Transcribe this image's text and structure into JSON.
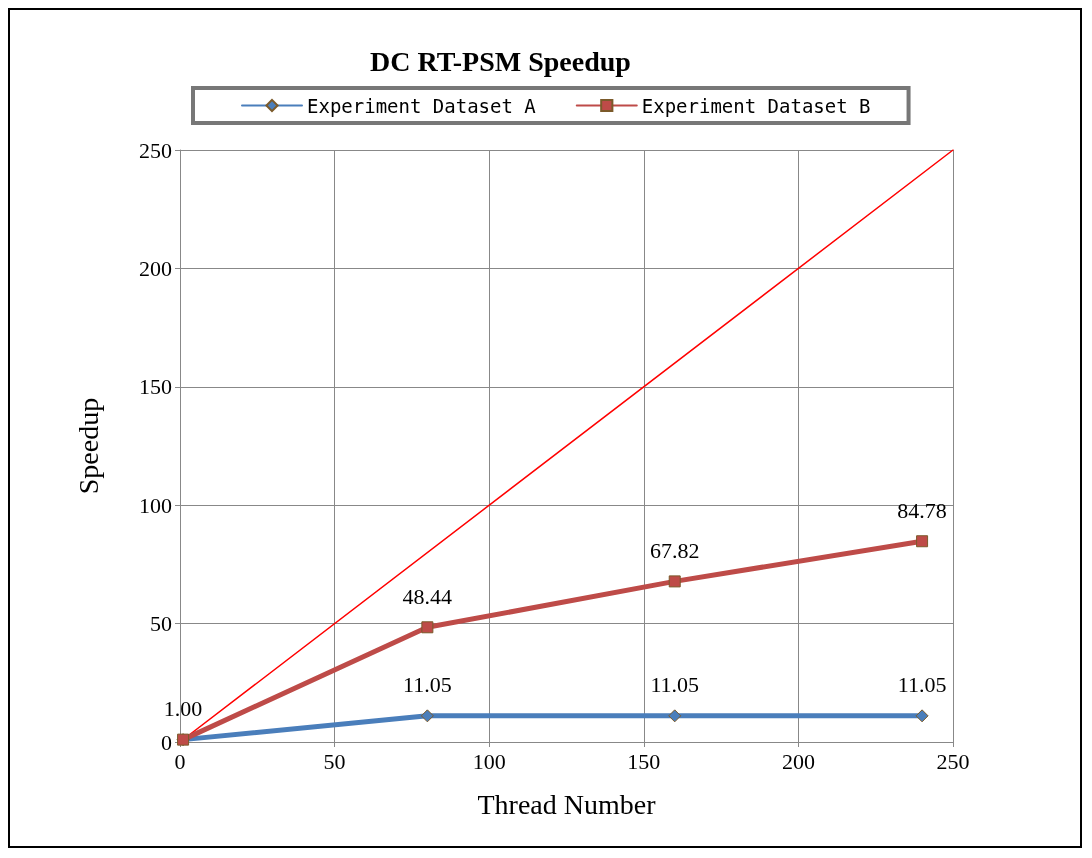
{
  "chart_data": {
    "type": "line",
    "title": "DC RT-PSM Speedup",
    "xlabel": "Thread Number",
    "ylabel": "Speedup",
    "xlim": [
      0,
      250
    ],
    "xticks": [
      0,
      50,
      100,
      150,
      200,
      250
    ],
    "ylim": [
      0,
      250
    ],
    "yticks": [
      0,
      50,
      100,
      150,
      200,
      250
    ],
    "grid": true,
    "legend": "top",
    "line_style": "solid",
    "series": [
      {
        "name": "Experiment Dataset A",
        "color": "#4a7ebb",
        "marker": "diamond",
        "x": [
          1,
          80,
          160,
          240
        ],
        "values": [
          1.0,
          11.05,
          11.05,
          11.05
        ],
        "value_labels": [
          "1.00",
          "11.05",
          "11.05",
          "11.05"
        ]
      },
      {
        "name": "Experiment Dataset B",
        "color": "#be4b48",
        "marker": "square",
        "x": [
          1,
          80,
          160,
          240
        ],
        "values": [
          1.0,
          48.44,
          67.82,
          84.78
        ],
        "value_labels": [
          null,
          "48.44",
          "67.82",
          "84.78"
        ]
      },
      {
        "color": "#ff0000",
        "marker": "none",
        "x": [
          0,
          250
        ],
        "values": [
          0,
          250
        ]
      }
    ]
  }
}
